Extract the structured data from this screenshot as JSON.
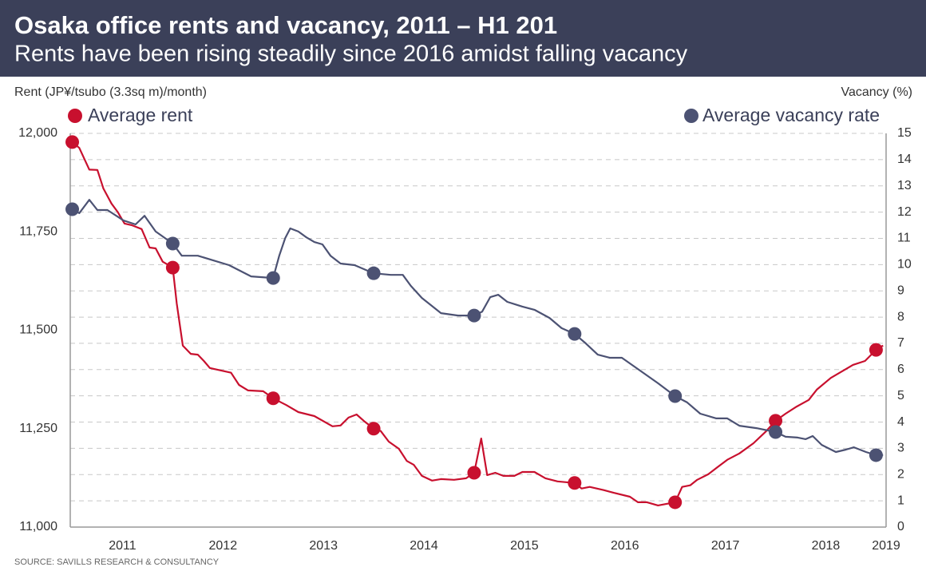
{
  "chart_data": {
    "type": "line",
    "title": "Osaka office rents and vacancy, 2011 – H1 201",
    "subtitle": "Rents have been rising steadily since 2016 amidst falling vacancy",
    "y_label": "Rent (JP¥/tsubo (3.3sq m)/month)",
    "y2_label": "Vacancy (%)",
    "source": "SOURCE: SAVILLS RESEARCH & CONSULTANCY",
    "xlim": [
      2010.98,
      2019.1
    ],
    "xticks": [
      {
        "value": 2011.5,
        "label": "2011"
      },
      {
        "value": 2012.5,
        "label": "2012"
      },
      {
        "value": 2013.5,
        "label": "2013"
      },
      {
        "value": 2014.5,
        "label": "2014"
      },
      {
        "value": 2015.5,
        "label": "2015"
      },
      {
        "value": 2016.5,
        "label": "2016"
      },
      {
        "value": 2017.5,
        "label": "2017"
      },
      {
        "value": 2018.5,
        "label": "2018"
      },
      {
        "value": 2019.1,
        "label": "2019"
      }
    ],
    "ylim": [
      11000,
      12000
    ],
    "yticks": [
      {
        "value": 11000,
        "label": "11,000"
      },
      {
        "value": 11250,
        "label": "11,250"
      },
      {
        "value": 11500,
        "label": "11,500"
      },
      {
        "value": 11750,
        "label": "11,750"
      },
      {
        "value": 12000,
        "label": "12,000"
      }
    ],
    "y2lim": [
      0,
      15
    ],
    "y2ticks": [
      0,
      1,
      2,
      3,
      4,
      5,
      6,
      7,
      8,
      9,
      10,
      11,
      12,
      13,
      14,
      15
    ],
    "grid": true,
    "series": [
      {
        "name": "Average rent",
        "color": "#c8102e",
        "axis": "y",
        "x": [
          2011,
          2011.07,
          2011.17,
          2011.25,
          2011.31,
          2011.39,
          2011.45,
          2011.52,
          2011.59,
          2011.69,
          2011.77,
          2011.83,
          2011.9,
          2012,
          2012.04,
          2012.1,
          2012.18,
          2012.25,
          2012.31,
          2012.37,
          2012.44,
          2012.58,
          2012.66,
          2012.75,
          2012.9,
          2013,
          2013.13,
          2013.25,
          2013.41,
          2013.59,
          2013.67,
          2013.75,
          2013.83,
          2013.91,
          2014,
          2014.07,
          2014.15,
          2014.25,
          2014.33,
          2014.4,
          2014.48,
          2014.58,
          2014.67,
          2014.8,
          2014.92,
          2015,
          2015.07,
          2015.13,
          2015.21,
          2015.29,
          2015.4,
          2015.48,
          2015.6,
          2015.71,
          2015.83,
          2016,
          2016.07,
          2016.15,
          2016.29,
          2016.39,
          2016.55,
          2016.63,
          2016.72,
          2016.83,
          2017,
          2017.07,
          2017.15,
          2017.22,
          2017.33,
          2017.42,
          2017.52,
          2017.64,
          2017.78,
          2017.9,
          2018,
          2018.1,
          2018.21,
          2018.33,
          2018.41,
          2018.55,
          2018.65,
          2018.77,
          2018.89,
          2019,
          2019.07
        ],
        "values": [
          11978,
          11963,
          11908,
          11907,
          11860,
          11822,
          11801,
          11771,
          11767,
          11757,
          11710,
          11708,
          11674,
          11659,
          11568,
          11461,
          11440,
          11438,
          11422,
          11404,
          11400,
          11392,
          11361,
          11347,
          11345,
          11327,
          11310,
          11292,
          11282,
          11256,
          11258,
          11278,
          11286,
          11268,
          11250,
          11244,
          11217,
          11199,
          11168,
          11158,
          11130,
          11118,
          11122,
          11120,
          11124,
          11138,
          11225,
          11132,
          11138,
          11130,
          11130,
          11140,
          11140,
          11124,
          11116,
          11112,
          11098,
          11102,
          11094,
          11087,
          11077,
          11063,
          11063,
          11055,
          11063,
          11102,
          11106,
          11120,
          11134,
          11152,
          11171,
          11187,
          11213,
          11242,
          11270,
          11288,
          11306,
          11323,
          11349,
          11379,
          11394,
          11412,
          11422,
          11450,
          11461
        ]
      },
      {
        "name": "Average vacancy rate",
        "color": "#4c5273",
        "axis": "y2",
        "x": [
          2011,
          2011.07,
          2011.17,
          2011.25,
          2011.35,
          2011.51,
          2011.63,
          2011.72,
          2011.83,
          2012,
          2012.09,
          2012.25,
          2012.56,
          2012.78,
          2013,
          2013.06,
          2013.12,
          2013.17,
          2013.25,
          2013.33,
          2013.41,
          2013.49,
          2013.57,
          2013.67,
          2013.81,
          2014,
          2014.17,
          2014.29,
          2014.37,
          2014.48,
          2014.67,
          2014.84,
          2015,
          2015.08,
          2015.16,
          2015.24,
          2015.33,
          2015.48,
          2015.6,
          2015.75,
          2015.87,
          2016,
          2016.11,
          2016.23,
          2016.35,
          2016.47,
          2016.63,
          2016.83,
          2017,
          2017.12,
          2017.25,
          2017.41,
          2017.52,
          2017.64,
          2017.81,
          2018,
          2018.1,
          2018.22,
          2018.3,
          2018.37,
          2018.46,
          2018.6,
          2018.7,
          2018.78,
          2018.9,
          2019,
          2019.07
        ],
        "values": [
          12.11,
          11.96,
          12.47,
          12.08,
          12.08,
          11.68,
          11.53,
          11.86,
          11.26,
          10.8,
          10.34,
          10.34,
          9.98,
          9.55,
          9.49,
          10.34,
          11.01,
          11.38,
          11.26,
          11.04,
          10.86,
          10.77,
          10.34,
          10.04,
          9.98,
          9.67,
          9.61,
          9.61,
          9.19,
          8.73,
          8.15,
          8.06,
          8.06,
          8.21,
          8.76,
          8.85,
          8.58,
          8.4,
          8.28,
          7.97,
          7.58,
          7.36,
          7.0,
          6.57,
          6.45,
          6.45,
          6.02,
          5.48,
          4.99,
          4.75,
          4.32,
          4.14,
          4.14,
          3.86,
          3.77,
          3.62,
          3.44,
          3.41,
          3.35,
          3.47,
          3.13,
          2.86,
          2.95,
          3.04,
          2.86,
          2.74,
          2.74
        ]
      }
    ]
  }
}
